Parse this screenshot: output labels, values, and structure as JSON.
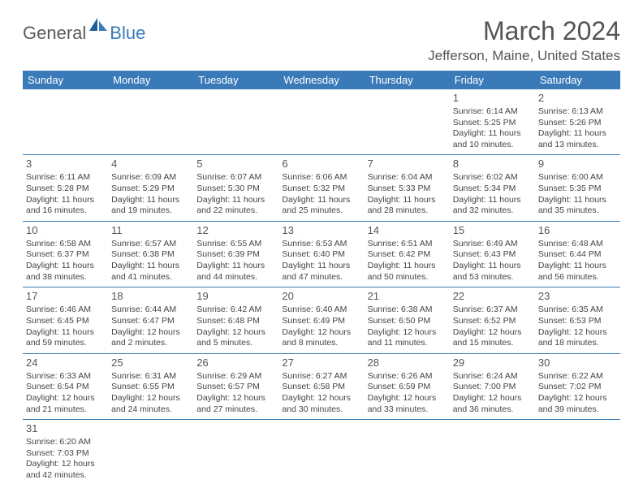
{
  "logo": {
    "text1": "General",
    "text2": "Blue"
  },
  "title": "March 2024",
  "location": "Jefferson, Maine, United States",
  "colors": {
    "header_bg": "#3a7ab8",
    "text": "#555555",
    "cell_text": "#444444",
    "border": "#3a7ab8"
  },
  "weekdays": [
    "Sunday",
    "Monday",
    "Tuesday",
    "Wednesday",
    "Thursday",
    "Friday",
    "Saturday"
  ],
  "weeks": [
    [
      null,
      null,
      null,
      null,
      null,
      {
        "day": "1",
        "sunrise": "Sunrise: 6:14 AM",
        "sunset": "Sunset: 5:25 PM",
        "daylight": "Daylight: 11 hours and 10 minutes."
      },
      {
        "day": "2",
        "sunrise": "Sunrise: 6:13 AM",
        "sunset": "Sunset: 5:26 PM",
        "daylight": "Daylight: 11 hours and 13 minutes."
      }
    ],
    [
      {
        "day": "3",
        "sunrise": "Sunrise: 6:11 AM",
        "sunset": "Sunset: 5:28 PM",
        "daylight": "Daylight: 11 hours and 16 minutes."
      },
      {
        "day": "4",
        "sunrise": "Sunrise: 6:09 AM",
        "sunset": "Sunset: 5:29 PM",
        "daylight": "Daylight: 11 hours and 19 minutes."
      },
      {
        "day": "5",
        "sunrise": "Sunrise: 6:07 AM",
        "sunset": "Sunset: 5:30 PM",
        "daylight": "Daylight: 11 hours and 22 minutes."
      },
      {
        "day": "6",
        "sunrise": "Sunrise: 6:06 AM",
        "sunset": "Sunset: 5:32 PM",
        "daylight": "Daylight: 11 hours and 25 minutes."
      },
      {
        "day": "7",
        "sunrise": "Sunrise: 6:04 AM",
        "sunset": "Sunset: 5:33 PM",
        "daylight": "Daylight: 11 hours and 28 minutes."
      },
      {
        "day": "8",
        "sunrise": "Sunrise: 6:02 AM",
        "sunset": "Sunset: 5:34 PM",
        "daylight": "Daylight: 11 hours and 32 minutes."
      },
      {
        "day": "9",
        "sunrise": "Sunrise: 6:00 AM",
        "sunset": "Sunset: 5:35 PM",
        "daylight": "Daylight: 11 hours and 35 minutes."
      }
    ],
    [
      {
        "day": "10",
        "sunrise": "Sunrise: 6:58 AM",
        "sunset": "Sunset: 6:37 PM",
        "daylight": "Daylight: 11 hours and 38 minutes."
      },
      {
        "day": "11",
        "sunrise": "Sunrise: 6:57 AM",
        "sunset": "Sunset: 6:38 PM",
        "daylight": "Daylight: 11 hours and 41 minutes."
      },
      {
        "day": "12",
        "sunrise": "Sunrise: 6:55 AM",
        "sunset": "Sunset: 6:39 PM",
        "daylight": "Daylight: 11 hours and 44 minutes."
      },
      {
        "day": "13",
        "sunrise": "Sunrise: 6:53 AM",
        "sunset": "Sunset: 6:40 PM",
        "daylight": "Daylight: 11 hours and 47 minutes."
      },
      {
        "day": "14",
        "sunrise": "Sunrise: 6:51 AM",
        "sunset": "Sunset: 6:42 PM",
        "daylight": "Daylight: 11 hours and 50 minutes."
      },
      {
        "day": "15",
        "sunrise": "Sunrise: 6:49 AM",
        "sunset": "Sunset: 6:43 PM",
        "daylight": "Daylight: 11 hours and 53 minutes."
      },
      {
        "day": "16",
        "sunrise": "Sunrise: 6:48 AM",
        "sunset": "Sunset: 6:44 PM",
        "daylight": "Daylight: 11 hours and 56 minutes."
      }
    ],
    [
      {
        "day": "17",
        "sunrise": "Sunrise: 6:46 AM",
        "sunset": "Sunset: 6:45 PM",
        "daylight": "Daylight: 11 hours and 59 minutes."
      },
      {
        "day": "18",
        "sunrise": "Sunrise: 6:44 AM",
        "sunset": "Sunset: 6:47 PM",
        "daylight": "Daylight: 12 hours and 2 minutes."
      },
      {
        "day": "19",
        "sunrise": "Sunrise: 6:42 AM",
        "sunset": "Sunset: 6:48 PM",
        "daylight": "Daylight: 12 hours and 5 minutes."
      },
      {
        "day": "20",
        "sunrise": "Sunrise: 6:40 AM",
        "sunset": "Sunset: 6:49 PM",
        "daylight": "Daylight: 12 hours and 8 minutes."
      },
      {
        "day": "21",
        "sunrise": "Sunrise: 6:38 AM",
        "sunset": "Sunset: 6:50 PM",
        "daylight": "Daylight: 12 hours and 11 minutes."
      },
      {
        "day": "22",
        "sunrise": "Sunrise: 6:37 AM",
        "sunset": "Sunset: 6:52 PM",
        "daylight": "Daylight: 12 hours and 15 minutes."
      },
      {
        "day": "23",
        "sunrise": "Sunrise: 6:35 AM",
        "sunset": "Sunset: 6:53 PM",
        "daylight": "Daylight: 12 hours and 18 minutes."
      }
    ],
    [
      {
        "day": "24",
        "sunrise": "Sunrise: 6:33 AM",
        "sunset": "Sunset: 6:54 PM",
        "daylight": "Daylight: 12 hours and 21 minutes."
      },
      {
        "day": "25",
        "sunrise": "Sunrise: 6:31 AM",
        "sunset": "Sunset: 6:55 PM",
        "daylight": "Daylight: 12 hours and 24 minutes."
      },
      {
        "day": "26",
        "sunrise": "Sunrise: 6:29 AM",
        "sunset": "Sunset: 6:57 PM",
        "daylight": "Daylight: 12 hours and 27 minutes."
      },
      {
        "day": "27",
        "sunrise": "Sunrise: 6:27 AM",
        "sunset": "Sunset: 6:58 PM",
        "daylight": "Daylight: 12 hours and 30 minutes."
      },
      {
        "day": "28",
        "sunrise": "Sunrise: 6:26 AM",
        "sunset": "Sunset: 6:59 PM",
        "daylight": "Daylight: 12 hours and 33 minutes."
      },
      {
        "day": "29",
        "sunrise": "Sunrise: 6:24 AM",
        "sunset": "Sunset: 7:00 PM",
        "daylight": "Daylight: 12 hours and 36 minutes."
      },
      {
        "day": "30",
        "sunrise": "Sunrise: 6:22 AM",
        "sunset": "Sunset: 7:02 PM",
        "daylight": "Daylight: 12 hours and 39 minutes."
      }
    ],
    [
      {
        "day": "31",
        "sunrise": "Sunrise: 6:20 AM",
        "sunset": "Sunset: 7:03 PM",
        "daylight": "Daylight: 12 hours and 42 minutes."
      },
      null,
      null,
      null,
      null,
      null,
      null
    ]
  ]
}
